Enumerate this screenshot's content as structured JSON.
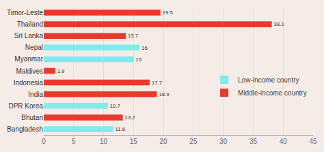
{
  "chart_data": {
    "type": "bar",
    "orientation": "horizontal",
    "categories": [
      "Timor-Leste",
      "Thailand",
      "Sri Lanka",
      "Nepal",
      "Myanmar",
      "Maldives",
      "Indonesia",
      "India",
      "DPR Korea",
      "Bhutan",
      "Bangladesh"
    ],
    "series": [
      {
        "name": "Low-income country",
        "color": "#7eecea",
        "values": [
          null,
          null,
          null,
          16,
          15,
          null,
          null,
          null,
          10.7,
          null,
          11.6
        ]
      },
      {
        "name": "Middle-income country",
        "color": "#e8392a",
        "values": [
          19.5,
          38.1,
          13.7,
          null,
          null,
          1.9,
          17.7,
          18.9,
          null,
          13.2,
          null
        ]
      }
    ],
    "xlim": [
      0,
      45
    ],
    "xticks": [
      0,
      5,
      10,
      15,
      20,
      25,
      30,
      35,
      40,
      45
    ],
    "grid": true,
    "data_labels": true,
    "legend": "right"
  }
}
